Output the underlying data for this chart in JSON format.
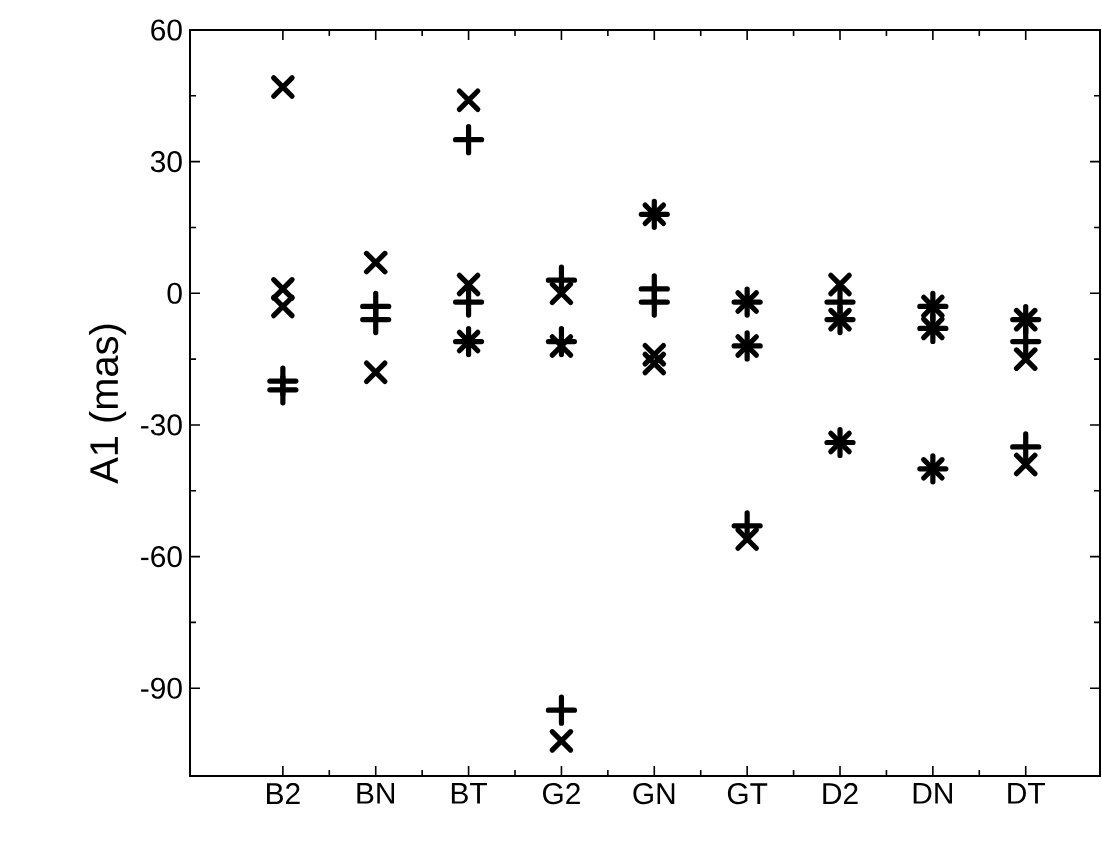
{
  "chart_data": {
    "type": "scatter",
    "ylabel": "A1 (mas)",
    "categories": [
      "B2",
      "BN",
      "BT",
      "G2",
      "GN",
      "GT",
      "D2",
      "DN",
      "DT"
    ],
    "ylim": [
      -110,
      60
    ],
    "yticks": [
      -90,
      -60,
      -30,
      0,
      30,
      60
    ],
    "series": [
      {
        "marker": "cross",
        "color": "#000000",
        "values": [
          47,
          7,
          44,
          0,
          18,
          -2,
          2,
          -3,
          -6
        ]
      },
      {
        "marker": "cross",
        "color": "#000000",
        "values": [
          1,
          null,
          2,
          -12,
          -14,
          -12,
          -6,
          -8,
          -15
        ]
      },
      {
        "marker": "cross",
        "color": "#000000",
        "values": [
          -3,
          -18,
          -11,
          -102,
          -16,
          -56,
          -34,
          -40,
          -39
        ]
      },
      {
        "marker": "plus",
        "color": "#000000",
        "values": [
          -20,
          -3,
          35,
          3,
          18,
          -2,
          -2,
          -3,
          -6
        ]
      },
      {
        "marker": "plus",
        "color": "#000000",
        "values": [
          -22,
          -6,
          -2,
          -11,
          1,
          -12,
          -6,
          -8,
          -11
        ]
      },
      {
        "marker": "plus",
        "color": "#000000",
        "values": [
          null,
          null,
          -11,
          -95,
          -2,
          -53,
          -34,
          -40,
          -35
        ]
      }
    ]
  }
}
